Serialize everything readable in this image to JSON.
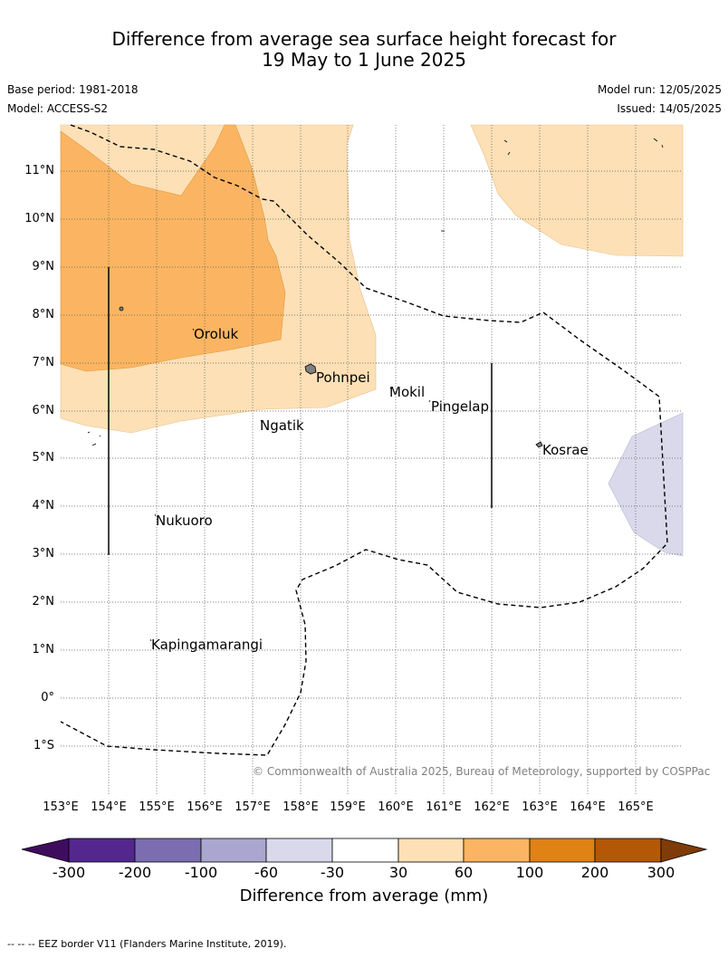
{
  "title": {
    "line1": "Difference from average sea surface height forecast for",
    "line2": "19 May to 1 June 2025"
  },
  "meta": {
    "base_period": "Base period: 1981-2018",
    "model": "Model: ACCESS-S2",
    "model_run": "Model run: 12/05/2025",
    "issued": "Issued: 14/05/2025"
  },
  "copyright": "© Commonwealth of Australia 2025, Bureau of Meteorology, supported by COSPPac",
  "latitude_labels": [
    "11°N",
    "10°N",
    "9°N",
    "8°N",
    "7°N",
    "6°N",
    "5°N",
    "4°N",
    "3°N",
    "2°N",
    "1°N",
    "0°",
    "1°S"
  ],
  "longitude_labels": [
    "153°E",
    "154°E",
    "155°E",
    "156°E",
    "157°E",
    "158°E",
    "159°E",
    "160°E",
    "161°E",
    "162°E",
    "163°E",
    "164°E",
    "165°E"
  ],
  "places": [
    "Oroluk",
    "Pohnpei",
    "Mokil",
    "Pingelap",
    "Ngatik",
    "Kosrae",
    "Nukuoro",
    "Kapingamarangi"
  ],
  "colorbar": {
    "title": "Difference from average (mm)",
    "tick_labels": [
      "-300",
      "-200",
      "-100",
      "-60",
      "-30",
      "30",
      "60",
      "100",
      "200",
      "300"
    ],
    "colors": [
      "#3f0d5e",
      "#54278f",
      "#7b6db0",
      "#aba6cf",
      "#d9d9eb",
      "#ffffff",
      "#fee0b6",
      "#fbb562",
      "#e08214",
      "#b35806",
      "#7f3b08"
    ]
  },
  "legend_note": "--  --  -- EEZ border V11 (Flanders Marine Institute, 2019)."
}
